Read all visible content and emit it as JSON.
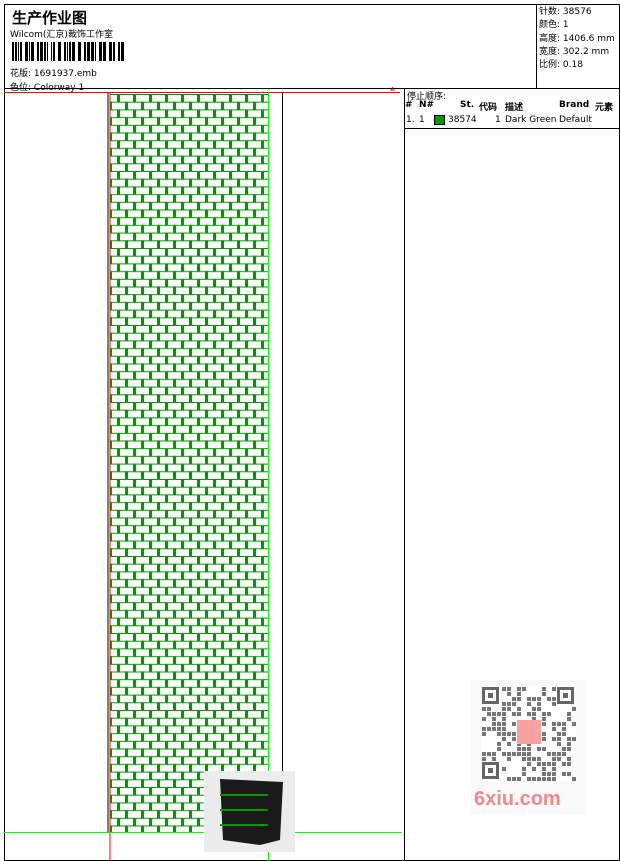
{
  "header": {
    "title": "生产作业图",
    "studio": "Wilcom(汇京)裁饰工作室",
    "design_label": "花版:",
    "design_file": "1691937.emb",
    "colorway_label": "色位:",
    "colorway": "Colorway 1"
  },
  "info": [
    {
      "label": "针数:",
      "value": "38576"
    },
    {
      "label": "颜色:",
      "value": "1"
    },
    {
      "label": "高度:",
      "value": "1406.6 mm"
    },
    {
      "label": "宽度:",
      "value": "302.2 mm"
    },
    {
      "label": "比例:",
      "value": "0.18"
    }
  ],
  "stop_sequence": {
    "title": "停止顺序:",
    "headers": [
      "#",
      "N#",
      "St.",
      "代码",
      "描述",
      "Brand",
      "元素"
    ],
    "rows": [
      {
        "idx": "1.",
        "n": "1",
        "color": "#009900",
        "stitches": "38574",
        "code": "1",
        "desc": "Dark Green",
        "brand": "Default"
      }
    ]
  },
  "colors": {
    "thread": "#009900",
    "guide_red": "#ff0000",
    "guide_green": "#00ff00"
  },
  "watermark": {
    "site": "6xiu.com",
    "icon": "qr-code-icon"
  }
}
